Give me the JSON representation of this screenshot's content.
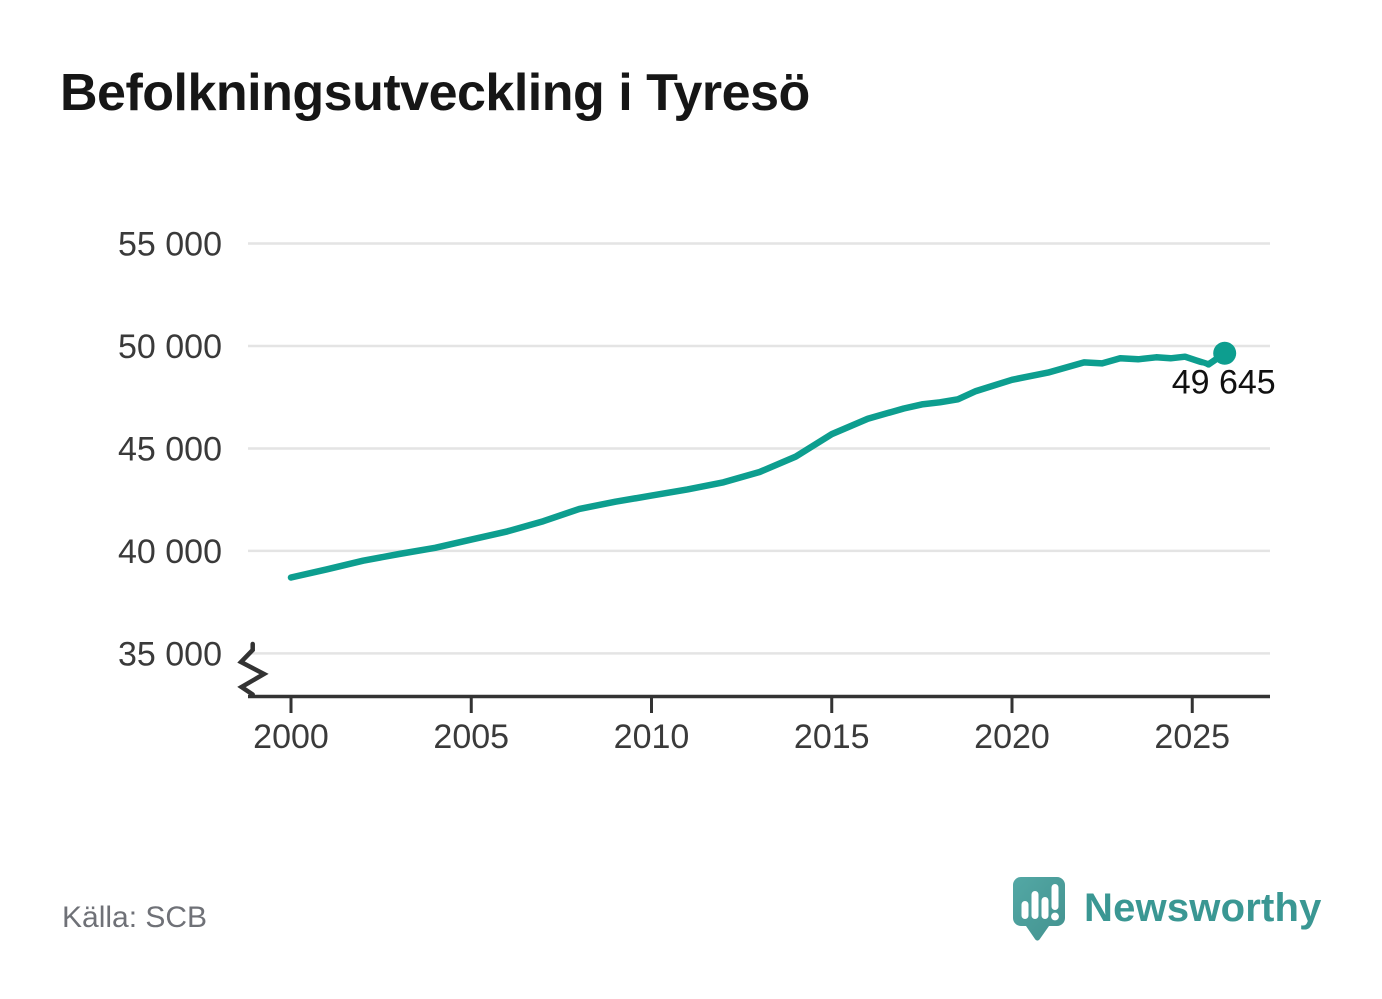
{
  "title": "Befolkningsutveckling i Tyresö",
  "source_note": "Källa: SCB",
  "branding": {
    "wordmark": "Newsworthy",
    "icon": "newsworthy-speech-bubble-bar-chart-icon",
    "wordmark_color": "#3A9793",
    "icon_fill_top": "#53A8A5",
    "icon_fill_bottom": "#43928F"
  },
  "colors": {
    "background": "#FFFFFF",
    "line": "#0D9E8F",
    "marker": "#0D9E8F",
    "grid": "#E4E4E4",
    "axis": "#333333",
    "tick_text": "#3A3A3A",
    "title_text": "#161616",
    "annotation_text": "#111111",
    "annotation_halo": "#FFFFFF",
    "source_text": "#6F7177"
  },
  "chart_data": {
    "type": "line",
    "title": "Befolkningsutveckling i Tyresö",
    "xlabel": "",
    "ylabel": "",
    "grid": "horizontal",
    "legend": "none",
    "axis_break": true,
    "xlim": [
      1998.8,
      2027.2
    ],
    "ylim_shown": [
      35000,
      55000
    ],
    "x_ticks": [
      {
        "value": 2000,
        "label": "2000"
      },
      {
        "value": 2005,
        "label": "2005"
      },
      {
        "value": 2010,
        "label": "2010"
      },
      {
        "value": 2015,
        "label": "2015"
      },
      {
        "value": 2020,
        "label": "2020"
      },
      {
        "value": 2025,
        "label": "2025"
      }
    ],
    "y_ticks": [
      {
        "value": 55000,
        "label": "55 000"
      },
      {
        "value": 50000,
        "label": "50 000"
      },
      {
        "value": 45000,
        "label": "45 000"
      },
      {
        "value": 40000,
        "label": "40 000"
      },
      {
        "value": 35000,
        "label": "35 000"
      }
    ],
    "x": [
      2000,
      2001,
      2002,
      2003,
      2004,
      2005,
      2006,
      2007,
      2008,
      2009,
      2010,
      2011,
      2012,
      2013,
      2014,
      2015,
      2016,
      2017,
      2017.5,
      2018,
      2018.5,
      2019,
      2020,
      2021,
      2022,
      2022.5,
      2023,
      2023.5,
      2024,
      2024.4,
      2024.8,
      2025.1,
      2025.45,
      2025.9
    ],
    "y": [
      38700,
      39100,
      39520,
      39850,
      40150,
      40550,
      40950,
      41450,
      42050,
      42400,
      42700,
      43000,
      43350,
      43850,
      44600,
      45700,
      46450,
      46950,
      47150,
      47250,
      47400,
      47800,
      48350,
      48700,
      49200,
      49150,
      49400,
      49350,
      49450,
      49400,
      49480,
      49300,
      49100,
      49645
    ],
    "end_point": {
      "x": 2025.9,
      "value": 49645,
      "label": "49 645"
    }
  }
}
